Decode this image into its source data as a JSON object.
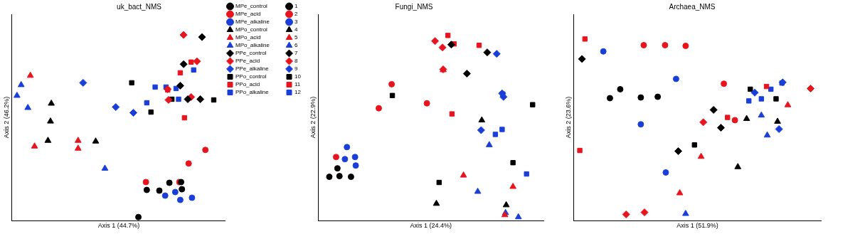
{
  "chart_data": [
    {
      "type": "scatter",
      "title": "uk_bact_NMS",
      "x_label": "Axis 1 (44.7%)",
      "y_label": "Axis 2 (46.2%)",
      "xlim": [
        0,
        255
      ],
      "ylim": [
        0,
        289
      ],
      "tick_labels": false,
      "grid": false,
      "legend": "top-right",
      "series": [
        {
          "name": "MPe_control",
          "color": "#000000",
          "marker": "circle",
          "x": [
            161,
            176,
            188,
            202,
            203,
            151
          ],
          "y": [
            43,
            42,
            53,
            54,
            44,
            5
          ]
        },
        {
          "name": "MPe_acid",
          "color": "#e8141e",
          "marker": "circle",
          "x": [
            160,
            211,
            231,
            200
          ],
          "y": [
            54,
            80,
            99,
            54
          ]
        },
        {
          "name": "MPe_alkaline",
          "color": "#1a3fd8",
          "marker": "circle",
          "x": [
            183,
            201,
            215,
            195
          ],
          "y": [
            35,
            29,
            32,
            40
          ]
        },
        {
          "name": "MPo_control",
          "color": "#000000",
          "marker": "triangle",
          "x": [
            47,
            46,
            43,
            100
          ],
          "y": [
            164,
            139,
            112,
            111
          ]
        },
        {
          "name": "MPo_acid",
          "color": "#e8141e",
          "marker": "triangle",
          "x": [
            22,
            27,
            79,
            79
          ],
          "y": [
            203,
            104,
            112,
            101
          ]
        },
        {
          "name": "MPo_alkaline",
          "color": "#1a3fd8",
          "marker": "triangle",
          "x": [
            11,
            6,
            19,
            111
          ],
          "y": [
            190,
            175,
            158,
            73
          ]
        },
        {
          "name": "PPe_control",
          "color": "#000000",
          "marker": "diamond",
          "x": [
            205,
            227,
            201,
            210,
            225
          ],
          "y": [
            219,
            257,
            189,
            170,
            170
          ]
        },
        {
          "name": "PPe_acid",
          "color": "#e8141e",
          "marker": "diamond",
          "x": [
            205,
            221,
            186,
            214,
            187
          ],
          "y": [
            260,
            223,
            184,
            173,
            169
          ]
        },
        {
          "name": "PPe_alkaline",
          "color": "#1a3fd8",
          "marker": "diamond",
          "x": [
            85,
            124,
            145
          ],
          "y": [
            193,
            159,
            151
          ]
        },
        {
          "name": "PPo_control",
          "color": "#000000",
          "marker": "square",
          "x": [
            143,
            166,
            191,
            241
          ],
          "y": [
            193,
            152,
            170,
            169
          ]
        },
        {
          "name": "PPo_acid",
          "color": "#e8141e",
          "marker": "square",
          "x": [
            214,
            186,
            206,
            201
          ],
          "y": [
            222,
            183,
            144,
            207
          ]
        },
        {
          "name": "PPo_alkaline",
          "color": "#1a3fd8",
          "marker": "square",
          "x": [
            161,
            171,
            184,
            199,
            217,
            196
          ],
          "y": [
            165,
            187,
            187,
            170,
            211,
            185
          ]
        }
      ]
    },
    {
      "type": "scatter",
      "title": "Fungi_NMS",
      "x_label": "Axis 1 (24.4%)",
      "y_label": "Axis 2 (22.9%)",
      "xlim": [
        0,
        332
      ],
      "ylim": [
        0,
        292
      ],
      "tick_labels": false,
      "grid": false,
      "legend": "top-left",
      "series": [
        {
          "name": "1",
          "color": "#000000",
          "marker": "circle",
          "x": [
            16,
            31,
            48,
            28
          ],
          "y": [
            62,
            63,
            62,
            74
          ]
        },
        {
          "name": "2",
          "color": "#e8141e",
          "marker": "circle",
          "x": [
            26,
            108,
            89,
            160
          ],
          "y": [
            90,
            193,
            159,
            166
          ]
        },
        {
          "name": "3",
          "color": "#1a3fd8",
          "marker": "circle",
          "x": [
            42,
            54,
            55,
            39
          ],
          "y": [
            104,
            90,
            78,
            87
          ]
        },
        {
          "name": "4",
          "color": "#000000",
          "marker": "triangle",
          "x": [
            174,
            241,
            277
          ],
          "y": [
            24,
            142,
            22
          ]
        },
        {
          "name": "5",
          "color": "#e8141e",
          "marker": "triangle",
          "x": [
            214,
            184,
            287,
            275
          ],
          "y": [
            64,
            213,
            48,
            8
          ]
        },
        {
          "name": "6",
          "color": "#1a3fd8",
          "marker": "triangle",
          "x": [
            235,
            252,
            295,
            276
          ],
          "y": [
            41,
            107,
            5,
            11
          ]
        },
        {
          "name": "7",
          "color": "#000000",
          "marker": "diamond",
          "x": [
            196,
            219,
            249
          ],
          "y": [
            249,
            208,
            238
          ]
        },
        {
          "name": "8",
          "color": "#e8141e",
          "marker": "diamond",
          "x": [
            172,
            184,
            183
          ],
          "y": [
            254,
            214,
            245
          ]
        },
        {
          "name": "9",
          "color": "#1a3fd8",
          "marker": "diamond",
          "x": [
            263,
            240,
            271,
            273
          ],
          "y": [
            236,
            128,
            180,
            175
          ]
        },
        {
          "name": "10",
          "color": "#000000",
          "marker": "square",
          "x": [
            109,
            178,
            287,
            316
          ],
          "y": [
            177,
            54,
            82,
            164
          ]
        },
        {
          "name": "11",
          "color": "#e8141e",
          "marker": "square",
          "x": [
            191,
            200,
            237,
            197
          ],
          "y": [
            262,
            250,
            248,
            151
          ]
        },
        {
          "name": "12",
          "color": "#1a3fd8",
          "marker": "square",
          "x": [
            261,
            271,
            272,
            307
          ],
          "y": [
            122,
            129,
            179,
            66
          ]
        }
      ]
    },
    {
      "type": "scatter",
      "title": "Archaea_NMS",
      "x_label": "Axis 1 (51.9%)",
      "y_label": "Axis 2 (23.6%)",
      "xlim": [
        0,
        336
      ],
      "ylim": [
        0,
        300
      ],
      "tick_labels": false,
      "grid": false,
      "series": [
        {
          "color": "#000000",
          "marker": "circle",
          "x": [
            49,
            63,
            91,
            114
          ],
          "y": [
            178,
            191,
            179,
            180
          ]
        },
        {
          "color": "#e8141e",
          "marker": "circle",
          "x": [
            95,
            124,
            152,
            204,
            219
          ],
          "y": [
            255,
            255,
            254,
            199,
            146
          ]
        },
        {
          "color": "#1a3fd8",
          "marker": "circle",
          "x": [
            40,
            139,
            91,
            125
          ],
          "y": [
            246,
            206,
            140,
            70
          ]
        },
        {
          "color": "#000000",
          "marker": "triangle",
          "x": [
            223,
            235,
            277
          ],
          "y": [
            78,
            148,
            144
          ]
        },
        {
          "color": "#e8141e",
          "marker": "triangle",
          "x": [
            173,
            144,
            291
          ],
          "y": [
            93,
            40,
            168
          ]
        },
        {
          "color": "#1a3fd8",
          "marker": "triangle",
          "x": [
            152,
            263,
            255
          ],
          "y": [
            10,
            124,
            153
          ]
        },
        {
          "color": "#000000",
          "marker": "diamond",
          "x": [
            11,
            142,
            190,
            200
          ],
          "y": [
            235,
            101,
            161,
            135
          ]
        },
        {
          "color": "#e8141e",
          "marker": "diamond",
          "x": [
            71,
            96,
            176,
            322
          ],
          "y": [
            9,
            12,
            143,
            192
          ]
        },
        {
          "color": "#1a3fd8",
          "marker": "diamond",
          "x": [
            279,
            284,
            246
          ],
          "y": [
            133,
            201,
            186
          ]
        },
        {
          "color": "#000000",
          "marker": "square",
          "x": [
            164,
            240,
            275
          ],
          "y": [
            110,
            191,
            177
          ]
        },
        {
          "color": "#e8141e",
          "marker": "square",
          "x": [
            15,
            8,
            209,
            262
          ],
          "y": [
            264,
            102,
            150,
            195
          ]
        },
        {
          "color": "#1a3fd8",
          "marker": "square",
          "x": [
            238,
            255,
            268,
            283
          ],
          "y": [
            174,
            177,
            191,
            200
          ]
        }
      ]
    }
  ]
}
